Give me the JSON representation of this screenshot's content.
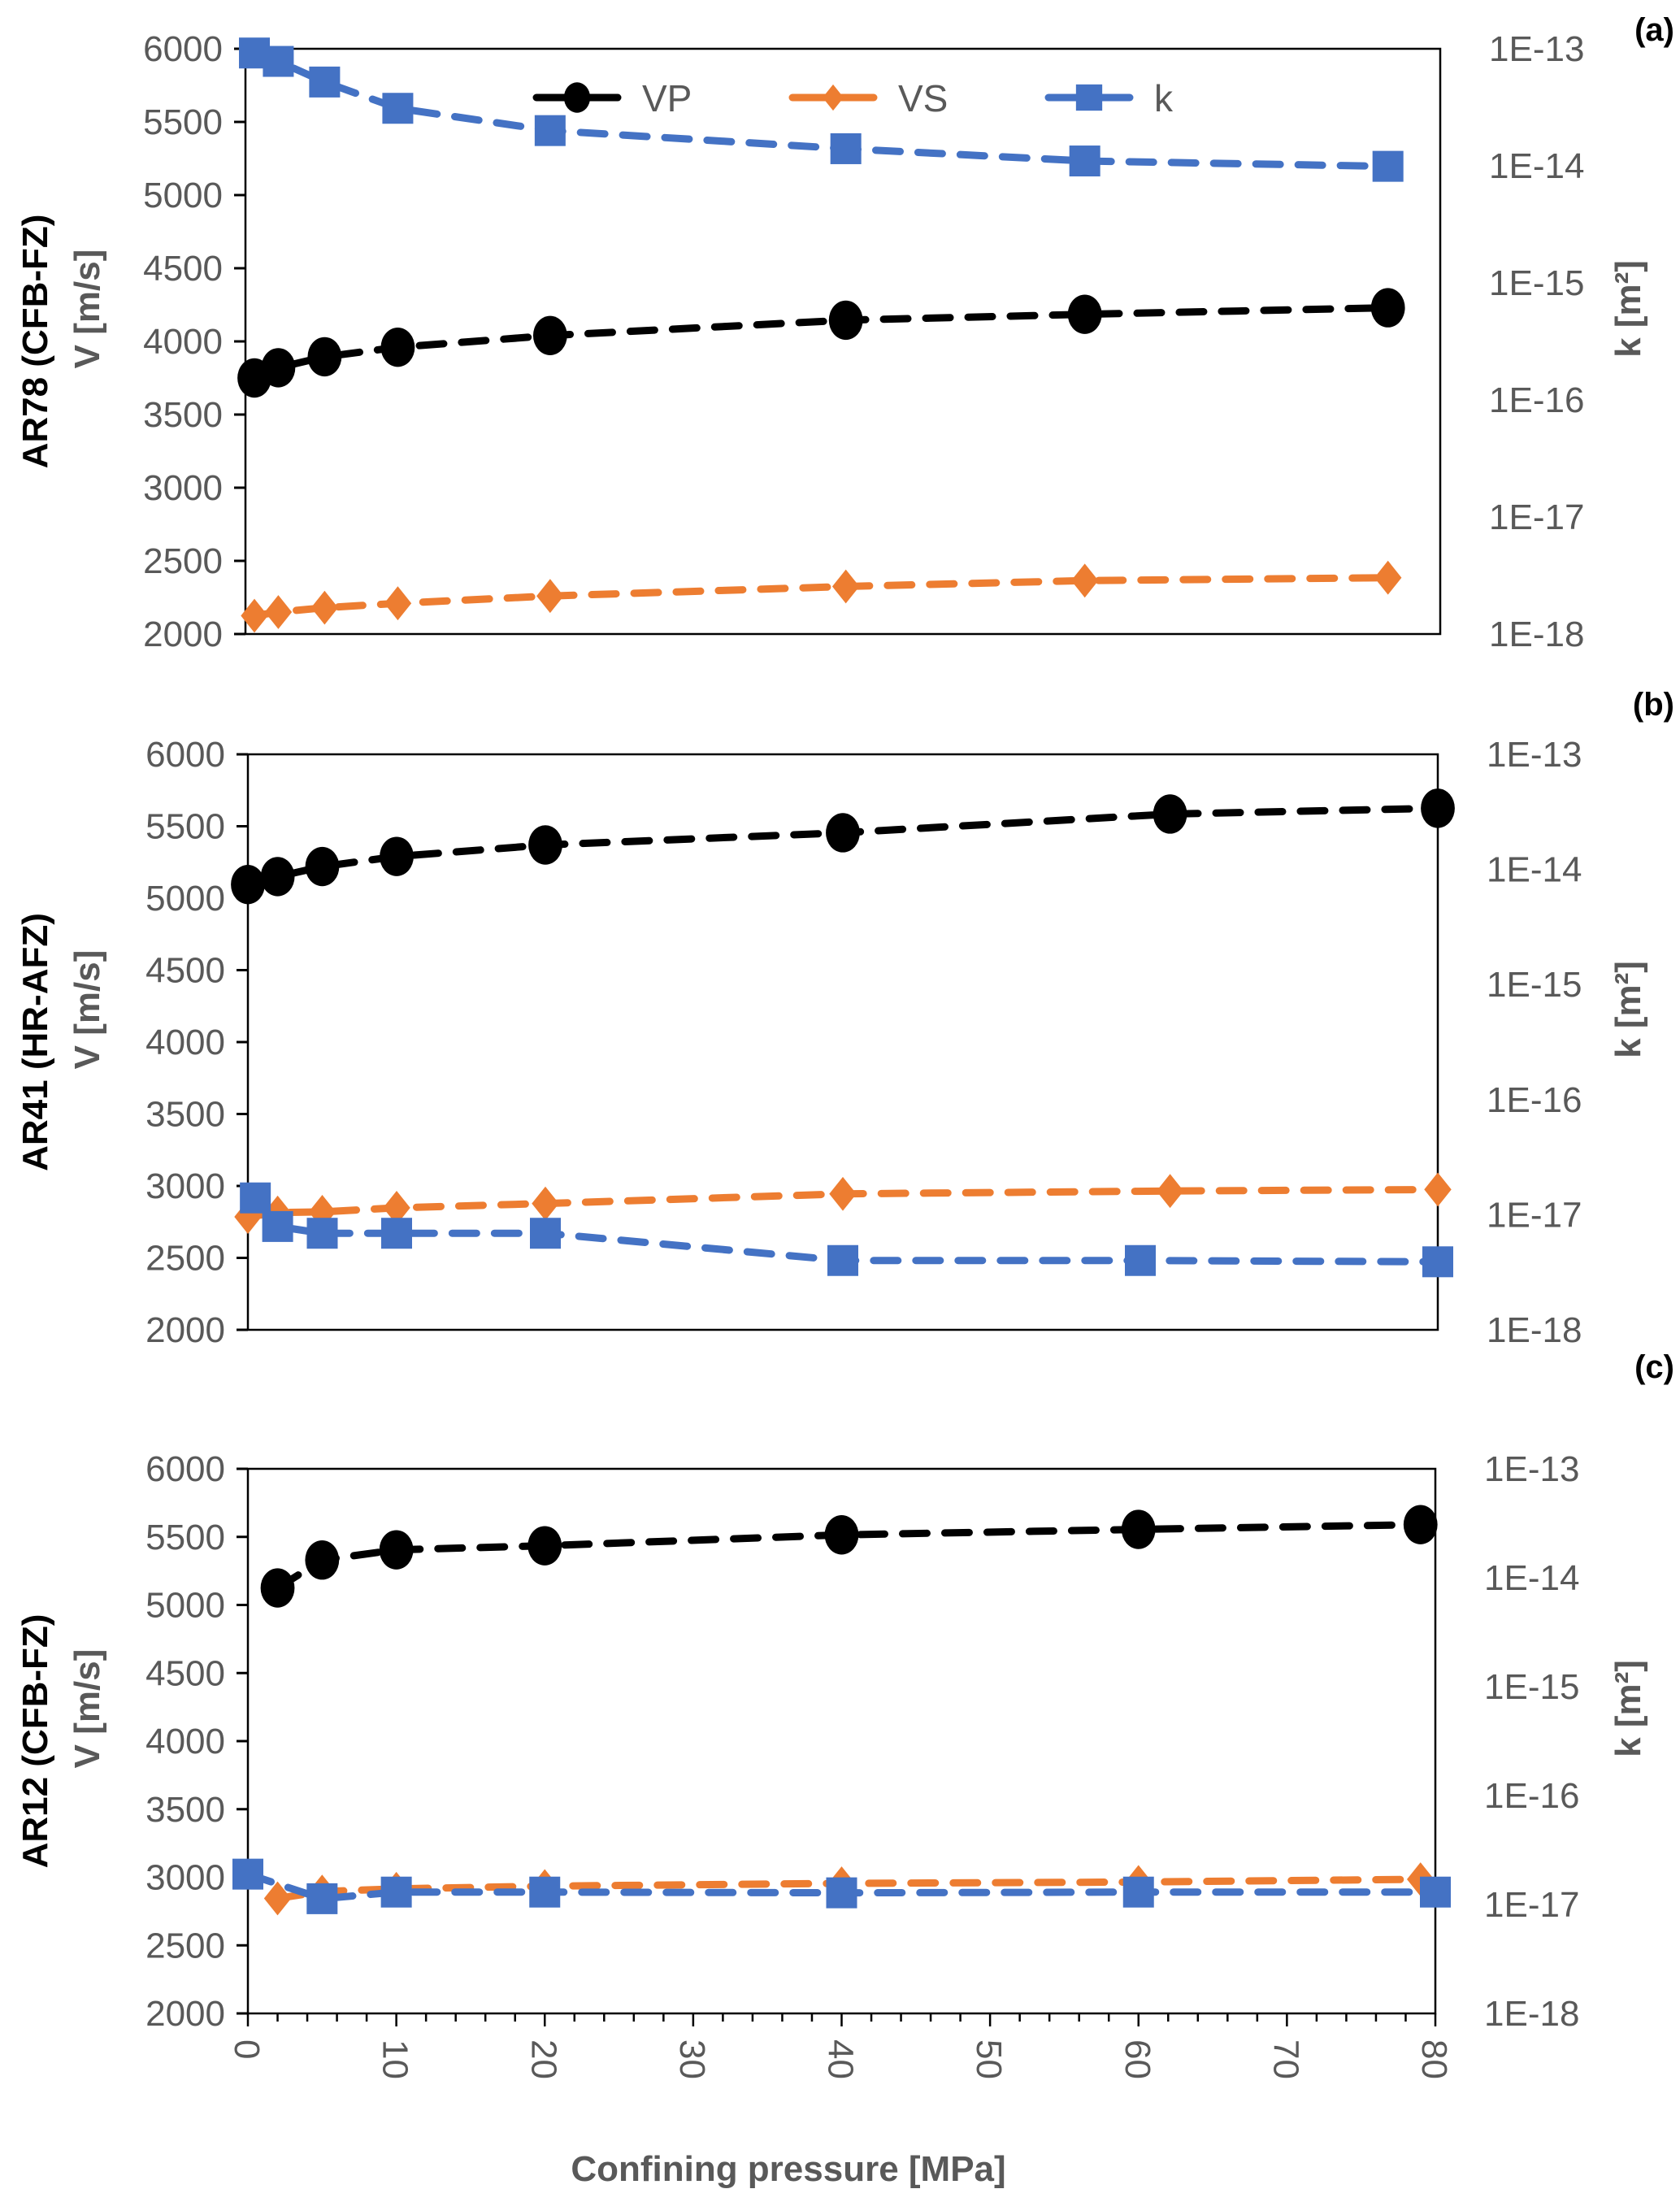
{
  "chart_data": {
    "type": "line",
    "xlabel": "Confining pressure [MPa]",
    "x_ticks": [
      "0",
      "10",
      "20",
      "30",
      "40",
      "50",
      "60",
      "70",
      "80"
    ],
    "xlim": [
      0,
      80
    ],
    "x_minor_tick_step": 2,
    "legend": {
      "placement": "top-center of panel (a)",
      "entries": [
        {
          "name": "VP",
          "color": "#000000",
          "marker": "circle",
          "line": "dashed"
        },
        {
          "name": "VS",
          "color": "#ED7D31",
          "marker": "diamond",
          "line": "dashed"
        },
        {
          "name": "k",
          "color": "#4472C4",
          "marker": "square",
          "line": "dashed"
        }
      ]
    },
    "panels": [
      {
        "label": "(a)",
        "sample": "AR78 (CFB-FZ)",
        "ylabel_left": "V [m/s]",
        "ylabel_right": "k [m²]",
        "ylim_left": [
          2000,
          6000
        ],
        "y_ticks_left": [
          "2000",
          "2500",
          "3000",
          "3500",
          "4000",
          "4500",
          "5000",
          "5500",
          "6000"
        ],
        "ylim_right": [
          1e-18,
          1e-13
        ],
        "y_scale_right": "log",
        "y_ticks_right": [
          "1E-18",
          "1E-17",
          "1E-16",
          "1E-15",
          "1E-14",
          "1E-13"
        ],
        "show_legend": true,
        "show_x_tick_labels": false,
        "series": [
          {
            "name": "VP",
            "axis": "left",
            "x": [
              0.6,
              2.2,
              5.3,
              10.2,
              20.4,
              40.2,
              56.2,
              76.5
            ],
            "y": [
              3750,
              3820,
              3895,
              3960,
              4040,
              4145,
              4185,
              4230
            ]
          },
          {
            "name": "VS",
            "axis": "left",
            "x": [
              0.6,
              2.2,
              5.3,
              10.2,
              20.4,
              40.2,
              56.2,
              76.5
            ],
            "y": [
              2125,
              2150,
              2180,
              2210,
              2260,
              2325,
              2365,
              2385
            ]
          },
          {
            "name": "k",
            "axis": "right",
            "x": [
              0.6,
              2.2,
              5.3,
              10.2,
              20.4,
              40.2,
              56.2,
              76.5
            ],
            "y": [
              9.2e-14,
              7.8e-14,
              5.2e-14,
              3.1e-14,
              2e-14,
              1.4e-14,
              1.1e-14,
              9.9e-15
            ]
          }
        ]
      },
      {
        "label": "(b)",
        "sample": "AR41 (HR-AFZ)",
        "ylabel_left": "V [m/s]",
        "ylabel_right": "k [m²]",
        "ylim_left": [
          2000,
          6000
        ],
        "y_ticks_left": [
          "2000",
          "2500",
          "3000",
          "3500",
          "4000",
          "4500",
          "5000",
          "5500",
          "6000"
        ],
        "ylim_right": [
          1e-18,
          1e-13
        ],
        "y_scale_right": "log",
        "y_ticks_right": [
          "1E-18",
          "1E-17",
          "1E-16",
          "1E-15",
          "1E-14",
          "1E-13"
        ],
        "show_legend": false,
        "show_x_tick_labels": false,
        "series": [
          {
            "name": "VP",
            "axis": "left",
            "x": [
              0,
              2,
              5,
              10,
              20,
              40,
              62,
              80
            ],
            "y": [
              5095,
              5150,
              5220,
              5290,
              5370,
              5455,
              5585,
              5625
            ]
          },
          {
            "name": "VS",
            "axis": "left",
            "x": [
              0,
              2,
              5,
              10,
              20,
              40,
              62,
              80
            ],
            "y": [
              2785,
              2815,
              2820,
              2848,
              2878,
              2945,
              2965,
              2975
            ]
          },
          {
            "name": "k",
            "axis": "right",
            "x": [
              0.5,
              2,
              5,
              10,
              20,
              40,
              60,
              80
            ],
            "y": [
              1.4e-17,
              7.9e-18,
              6.9e-18,
              6.9e-18,
              6.9e-18,
              4e-18,
              4e-18,
              3.9e-18
            ]
          }
        ]
      },
      {
        "label": "(c)",
        "sample": "AR12 (CFB-FZ)",
        "ylabel_left": "V [m/s]",
        "ylabel_right": "k [m²]",
        "ylim_left": [
          2000,
          6000
        ],
        "y_ticks_left": [
          "2000",
          "2500",
          "3000",
          "3500",
          "4000",
          "4500",
          "5000",
          "5500",
          "6000"
        ],
        "ylim_right": [
          1e-18,
          1e-13
        ],
        "y_scale_right": "log",
        "y_ticks_right": [
          "1E-18",
          "1E-17",
          "1E-16",
          "1E-15",
          "1E-14",
          "1E-13"
        ],
        "show_legend": false,
        "show_x_tick_labels": true,
        "series": [
          {
            "name": "VP",
            "axis": "left",
            "x": [
              2,
              5,
              10,
              20,
              40,
              60,
              79
            ],
            "y": [
              5125,
              5330,
              5405,
              5435,
              5515,
              5555,
              5590
            ]
          },
          {
            "name": "VS",
            "axis": "left",
            "x": [
              2,
              5,
              10,
              20,
              40,
              60,
              79
            ],
            "y": [
              2845,
              2895,
              2915,
              2935,
              2955,
              2965,
              2985
            ]
          },
          {
            "name": "k",
            "axis": "right",
            "x": [
              0,
              5,
              10,
              20,
              40,
              60,
              80
            ],
            "y": [
              1.9e-17,
              1.13e-17,
              1.3e-17,
              1.3e-17,
              1.28e-17,
              1.3e-17,
              1.3e-17
            ]
          }
        ]
      }
    ]
  }
}
